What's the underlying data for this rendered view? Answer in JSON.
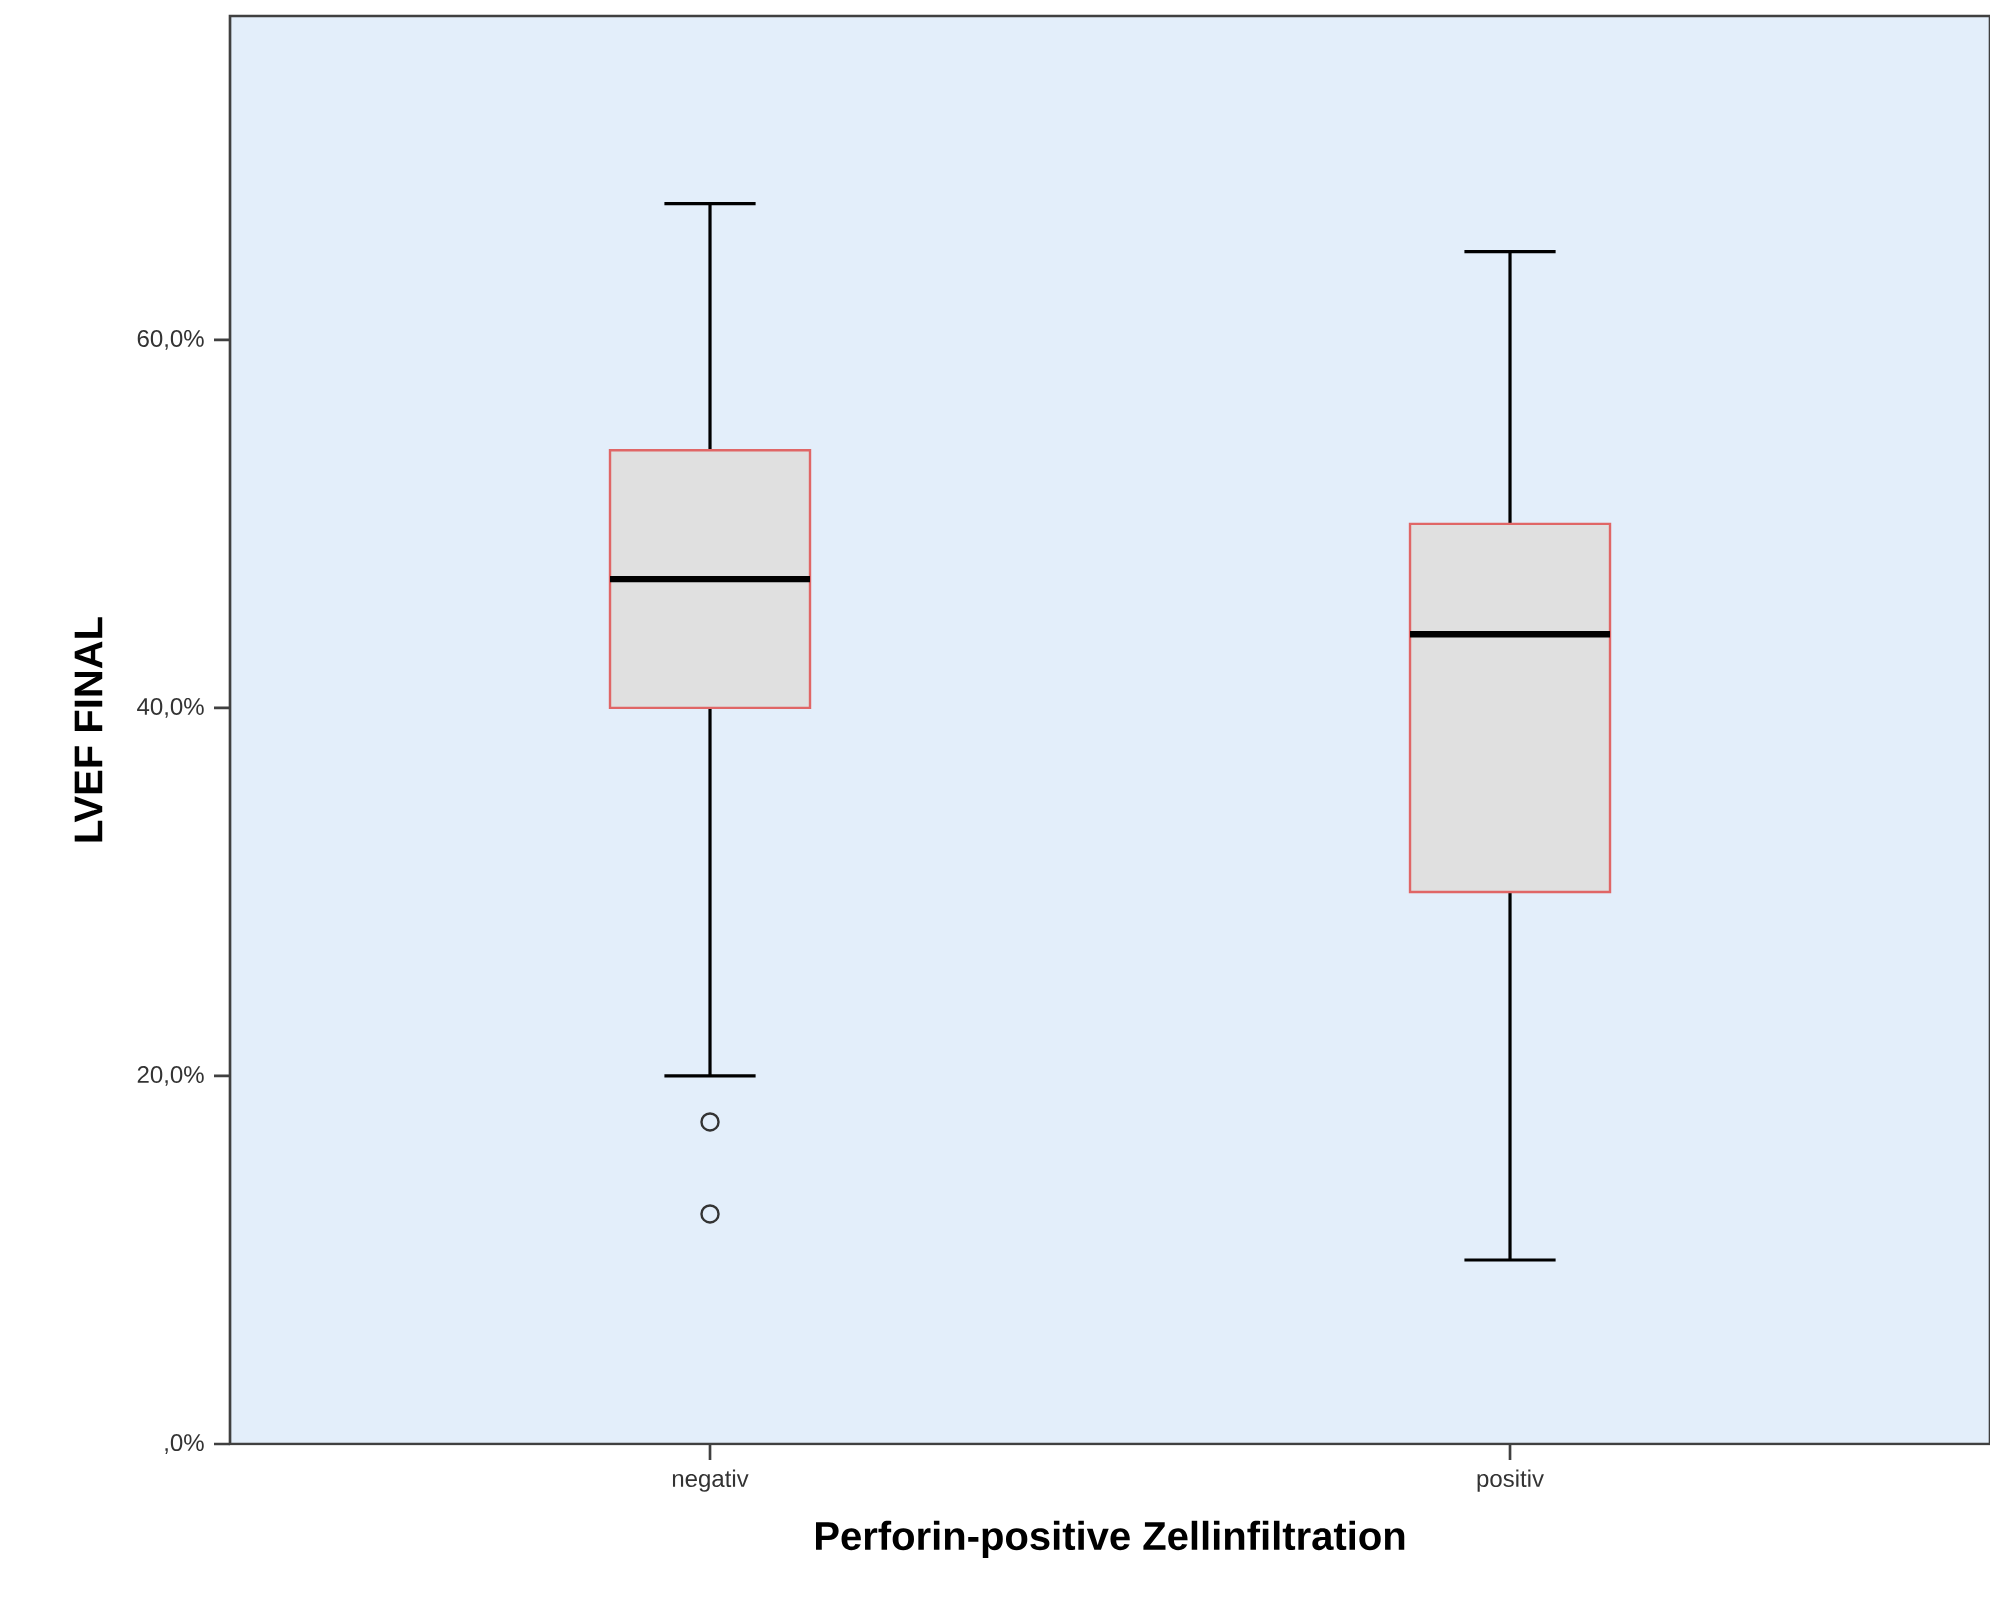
{
  "chart_data": {
    "type": "box",
    "xlabel": "Perforin-positive Zellinfiltration",
    "ylabel": "LVEF FINAL",
    "categories": [
      "negativ",
      "positiv"
    ],
    "series": [
      {
        "color": "#e06666",
        "boxes": [
          {
            "low": 20,
            "q1": 40,
            "median": 47,
            "q3": 54,
            "high": 67.4,
            "outliers": [
              17.5,
              12.5
            ]
          },
          {
            "low": 10,
            "q1": 30,
            "median": 44,
            "q3": 50,
            "high": 64.8
          }
        ]
      }
    ],
    "ylim": [
      0,
      77.6
    ],
    "yticks": [
      {
        "value": 0,
        "label": ",0%"
      },
      {
        "value": 20,
        "label": "20,0%"
      },
      {
        "value": 40,
        "label": "40,0%"
      },
      {
        "value": 60,
        "label": "60,0%"
      }
    ]
  }
}
